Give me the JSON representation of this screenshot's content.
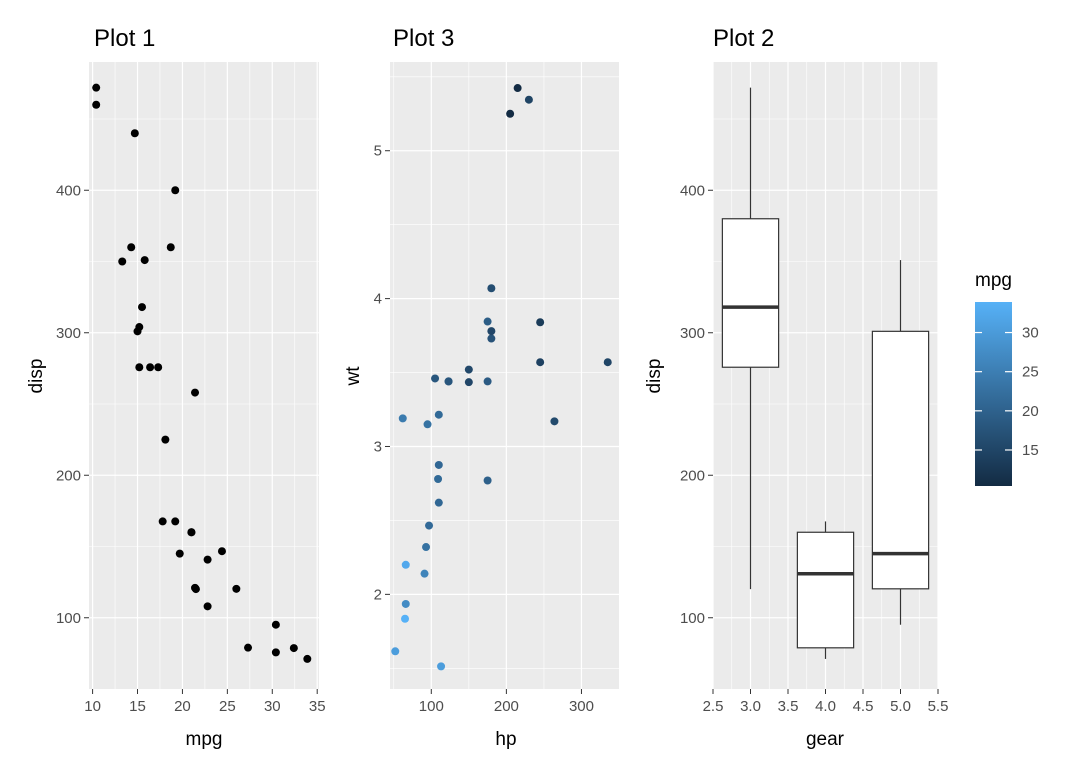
{
  "chart_data": [
    {
      "type": "scatter",
      "title": "Plot 1",
      "xlabel": "mpg",
      "ylabel": "disp",
      "xlim": [
        9.6,
        35.2
      ],
      "ylim": [
        50,
        490
      ],
      "xticks": [
        10,
        15,
        20,
        25,
        30,
        35
      ],
      "yticks": [
        100,
        200,
        300,
        400
      ],
      "point_color": "#000000",
      "points": [
        {
          "x": 21.0,
          "y": 160
        },
        {
          "x": 21.0,
          "y": 160
        },
        {
          "x": 22.8,
          "y": 108
        },
        {
          "x": 21.4,
          "y": 258
        },
        {
          "x": 18.7,
          "y": 360
        },
        {
          "x": 18.1,
          "y": 225
        },
        {
          "x": 14.3,
          "y": 360
        },
        {
          "x": 24.4,
          "y": 146.7
        },
        {
          "x": 22.8,
          "y": 140.8
        },
        {
          "x": 19.2,
          "y": 167.6
        },
        {
          "x": 17.8,
          "y": 167.6
        },
        {
          "x": 16.4,
          "y": 275.8
        },
        {
          "x": 17.3,
          "y": 275.8
        },
        {
          "x": 15.2,
          "y": 275.8
        },
        {
          "x": 10.4,
          "y": 472
        },
        {
          "x": 10.4,
          "y": 460
        },
        {
          "x": 14.7,
          "y": 440
        },
        {
          "x": 32.4,
          "y": 78.7
        },
        {
          "x": 30.4,
          "y": 75.7
        },
        {
          "x": 33.9,
          "y": 71.1
        },
        {
          "x": 21.5,
          "y": 120.1
        },
        {
          "x": 15.5,
          "y": 318
        },
        {
          "x": 15.2,
          "y": 304
        },
        {
          "x": 13.3,
          "y": 350
        },
        {
          "x": 19.2,
          "y": 400
        },
        {
          "x": 27.3,
          "y": 79
        },
        {
          "x": 26.0,
          "y": 120.3
        },
        {
          "x": 30.4,
          "y": 95.1
        },
        {
          "x": 15.8,
          "y": 351
        },
        {
          "x": 19.7,
          "y": 145
        },
        {
          "x": 15.0,
          "y": 301
        },
        {
          "x": 21.4,
          "y": 121
        }
      ]
    },
    {
      "type": "scatter",
      "title": "Plot 3",
      "xlabel": "hp",
      "ylabel": "wt",
      "xlim": [
        45,
        350
      ],
      "ylim": [
        1.36,
        5.6
      ],
      "xticks": [
        100,
        200,
        300
      ],
      "yticks": [
        2,
        3,
        4,
        5
      ],
      "color_by": "mpg",
      "color_range": [
        10.4,
        33.9
      ],
      "color_low": "#132B43",
      "color_high": "#56B1F7",
      "points": [
        {
          "x": 110,
          "y": 2.62,
          "c": 21.0
        },
        {
          "x": 110,
          "y": 2.875,
          "c": 21.0
        },
        {
          "x": 93,
          "y": 2.32,
          "c": 22.8
        },
        {
          "x": 110,
          "y": 3.215,
          "c": 21.4
        },
        {
          "x": 175,
          "y": 3.44,
          "c": 18.7
        },
        {
          "x": 105,
          "y": 3.46,
          "c": 18.1
        },
        {
          "x": 245,
          "y": 3.57,
          "c": 14.3
        },
        {
          "x": 62,
          "y": 3.19,
          "c": 24.4
        },
        {
          "x": 95,
          "y": 3.15,
          "c": 22.8
        },
        {
          "x": 123,
          "y": 3.44,
          "c": 19.2
        },
        {
          "x": 123,
          "y": 3.44,
          "c": 17.8
        },
        {
          "x": 180,
          "y": 4.07,
          "c": 16.4
        },
        {
          "x": 180,
          "y": 3.73,
          "c": 17.3
        },
        {
          "x": 180,
          "y": 3.78,
          "c": 15.2
        },
        {
          "x": 205,
          "y": 5.25,
          "c": 10.4
        },
        {
          "x": 215,
          "y": 5.424,
          "c": 10.4
        },
        {
          "x": 230,
          "y": 5.345,
          "c": 14.7
        },
        {
          "x": 66,
          "y": 2.2,
          "c": 32.4
        },
        {
          "x": 52,
          "y": 1.615,
          "c": 30.4
        },
        {
          "x": 65,
          "y": 1.835,
          "c": 33.9
        },
        {
          "x": 97,
          "y": 2.465,
          "c": 21.5
        },
        {
          "x": 150,
          "y": 3.52,
          "c": 15.5
        },
        {
          "x": 150,
          "y": 3.435,
          "c": 15.2
        },
        {
          "x": 245,
          "y": 3.84,
          "c": 13.3
        },
        {
          "x": 175,
          "y": 3.845,
          "c": 19.2
        },
        {
          "x": 66,
          "y": 1.935,
          "c": 27.3
        },
        {
          "x": 91,
          "y": 2.14,
          "c": 26.0
        },
        {
          "x": 113,
          "y": 1.513,
          "c": 30.4
        },
        {
          "x": 264,
          "y": 3.17,
          "c": 15.8
        },
        {
          "x": 175,
          "y": 2.77,
          "c": 19.7
        },
        {
          "x": 335,
          "y": 3.57,
          "c": 15.0
        },
        {
          "x": 109,
          "y": 2.78,
          "c": 21.4
        }
      ]
    },
    {
      "type": "boxplot",
      "title": "Plot 2",
      "xlabel": "gear",
      "ylabel": "disp",
      "xlim": [
        2.5,
        5.5
      ],
      "ylim": [
        50,
        490
      ],
      "xticks": [
        "2.5",
        "3.0",
        "3.5",
        "4.0",
        "4.5",
        "5.0",
        "5.5"
      ],
      "yticks": [
        100,
        200,
        300,
        400
      ],
      "boxes": [
        {
          "x": 3,
          "min": 120.1,
          "q1": 275.8,
          "median": 318,
          "q3": 380,
          "max": 472
        },
        {
          "x": 4,
          "min": 71.1,
          "q1": 78.9,
          "median": 130.9,
          "q3": 160,
          "max": 167.6
        },
        {
          "x": 5,
          "min": 95.1,
          "q1": 120.3,
          "median": 145,
          "q3": 301,
          "max": 351
        }
      ]
    }
  ],
  "legend": {
    "title": "mpg",
    "labels": [
      15,
      20,
      25,
      30
    ],
    "range": [
      10.4,
      33.9
    ],
    "color_low": "#132B43",
    "color_high": "#56B1F7"
  }
}
